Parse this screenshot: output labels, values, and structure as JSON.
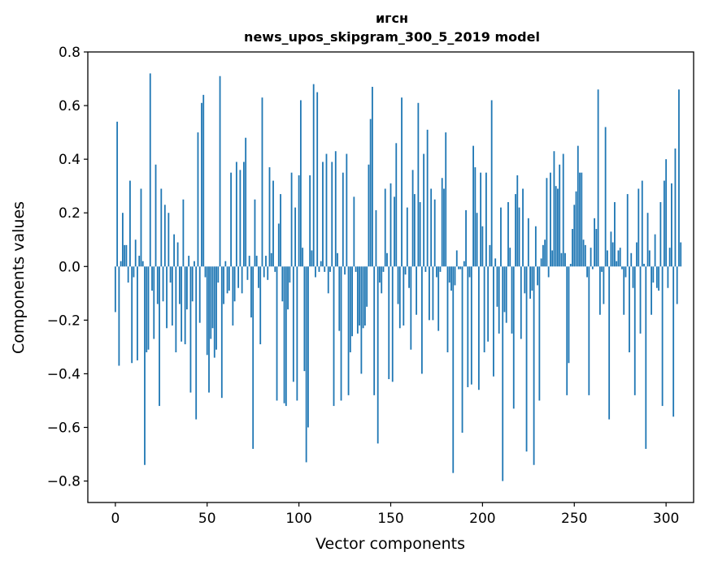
{
  "chart_data": {
    "type": "bar",
    "title": [
      "игсн",
      "news_upos_skipgram_300_5_2019 model"
    ],
    "xlabel": "Vector components",
    "ylabel": "Components values",
    "xlim": [
      -15,
      315
    ],
    "ylim": [
      -0.88,
      0.8
    ],
    "xticks": [
      0,
      50,
      100,
      150,
      200,
      250,
      300
    ],
    "xtick_labels": [
      "0",
      "50",
      "100",
      "150",
      "200",
      "250",
      "300"
    ],
    "yticks": [
      -0.8,
      -0.6,
      -0.4,
      -0.2,
      0.0,
      0.2,
      0.4,
      0.6,
      0.8
    ],
    "ytick_labels": [
      "−0.8",
      "−0.6",
      "−0.4",
      "−0.2",
      "0.0",
      "0.2",
      "0.4",
      "0.6",
      "0.8"
    ],
    "grid": false,
    "legend": false,
    "bar_color": "#1f77b4",
    "values": [
      -0.17,
      0.54,
      -0.37,
      0.02,
      0.2,
      0.08,
      0.08,
      -0.06,
      0.32,
      -0.36,
      -0.04,
      0.1,
      -0.35,
      0.04,
      0.29,
      0.02,
      -0.74,
      -0.32,
      -0.31,
      0.72,
      -0.09,
      -0.27,
      0.38,
      -0.14,
      -0.52,
      0.29,
      -0.13,
      0.23,
      -0.23,
      0.2,
      -0.06,
      -0.22,
      0.12,
      -0.32,
      0.09,
      -0.14,
      -0.28,
      0.25,
      -0.29,
      -0.16,
      0.04,
      -0.47,
      -0.13,
      0.02,
      -0.57,
      0.5,
      -0.21,
      0.61,
      0.64,
      -0.04,
      -0.33,
      -0.47,
      -0.27,
      -0.23,
      -0.34,
      -0.31,
      -0.06,
      0.71,
      -0.49,
      -0.14,
      0.02,
      -0.1,
      -0.09,
      0.35,
      -0.22,
      -0.13,
      0.39,
      -0.08,
      0.36,
      -0.1,
      0.39,
      0.48,
      -0.05,
      0.04,
      -0.19,
      -0.68,
      0.25,
      0.04,
      -0.08,
      -0.29,
      0.63,
      -0.04,
      0.04,
      -0.05,
      0.37,
      0.05,
      0.32,
      -0.02,
      -0.5,
      0.16,
      0.27,
      -0.13,
      -0.51,
      -0.52,
      -0.16,
      -0.06,
      0.35,
      -0.43,
      0.22,
      -0.5,
      0.34,
      0.62,
      0.07,
      -0.39,
      -0.73,
      -0.6,
      0.34,
      0.06,
      0.68,
      -0.04,
      0.65,
      -0.02,
      0.02,
      0.39,
      -0.02,
      0.42,
      -0.1,
      -0.02,
      0.39,
      -0.52,
      0.43,
      0.05,
      -0.24,
      -0.5,
      0.35,
      -0.03,
      0.42,
      -0.48,
      -0.32,
      -0.26,
      0.26,
      -0.02,
      -0.25,
      -0.22,
      -0.4,
      -0.23,
      -0.22,
      -0.15,
      0.38,
      0.55,
      0.67,
      -0.48,
      0.21,
      -0.66,
      -0.06,
      -0.1,
      -0.02,
      0.29,
      0.05,
      -0.42,
      0.31,
      -0.43,
      0.26,
      0.46,
      -0.14,
      -0.23,
      0.63,
      -0.22,
      -0.03,
      0.22,
      -0.08,
      -0.31,
      0.36,
      0.27,
      -0.18,
      0.61,
      0.24,
      -0.4,
      0.42,
      -0.02,
      0.51,
      -0.2,
      0.29,
      -0.2,
      0.25,
      -0.04,
      -0.24,
      -0.02,
      0.33,
      0.29,
      0.5,
      -0.32,
      -0.06,
      -0.09,
      -0.77,
      -0.07,
      0.06,
      -0.01,
      -0.01,
      -0.62,
      0.02,
      0.21,
      -0.45,
      -0.04,
      -0.44,
      0.45,
      0.37,
      0.2,
      -0.46,
      0.35,
      0.15,
      -0.32,
      0.35,
      -0.28,
      0.08,
      0.62,
      -0.41,
      0.03,
      -0.15,
      -0.25,
      0.22,
      -0.8,
      -0.17,
      -0.21,
      0.24,
      0.07,
      -0.25,
      -0.53,
      0.27,
      0.34,
      0.22,
      -0.27,
      0.29,
      -0.1,
      -0.69,
      0.18,
      -0.12,
      -0.09,
      -0.74,
      0.15,
      -0.07,
      -0.5,
      0.03,
      0.08,
      0.1,
      0.33,
      -0.04,
      0.35,
      0.06,
      0.43,
      0.3,
      0.29,
      0.38,
      0.05,
      0.42,
      0.05,
      -0.48,
      -0.36,
      0.01,
      0.14,
      0.23,
      0.28,
      0.45,
      0.35,
      0.35,
      0.1,
      0.08,
      -0.04,
      -0.48,
      0.07,
      -0.01,
      0.18,
      0.14,
      0.66,
      -0.18,
      -0.02,
      -0.14,
      0.52,
      0.06,
      -0.57,
      0.13,
      0.09,
      0.24,
      0.02,
      0.06,
      0.07,
      -0.01,
      -0.18,
      -0.04,
      0.27,
      -0.32,
      0.05,
      -0.08,
      -0.48,
      0.09,
      0.29,
      -0.25,
      0.32,
      0.01,
      -0.68,
      0.2,
      0.06,
      -0.18,
      -0.06,
      0.12,
      -0.08,
      -0.09,
      0.24,
      -0.52,
      0.32,
      0.4,
      -0.08,
      0.07,
      0.31,
      -0.56,
      0.44,
      -0.14,
      0.66,
      0.09
    ]
  }
}
